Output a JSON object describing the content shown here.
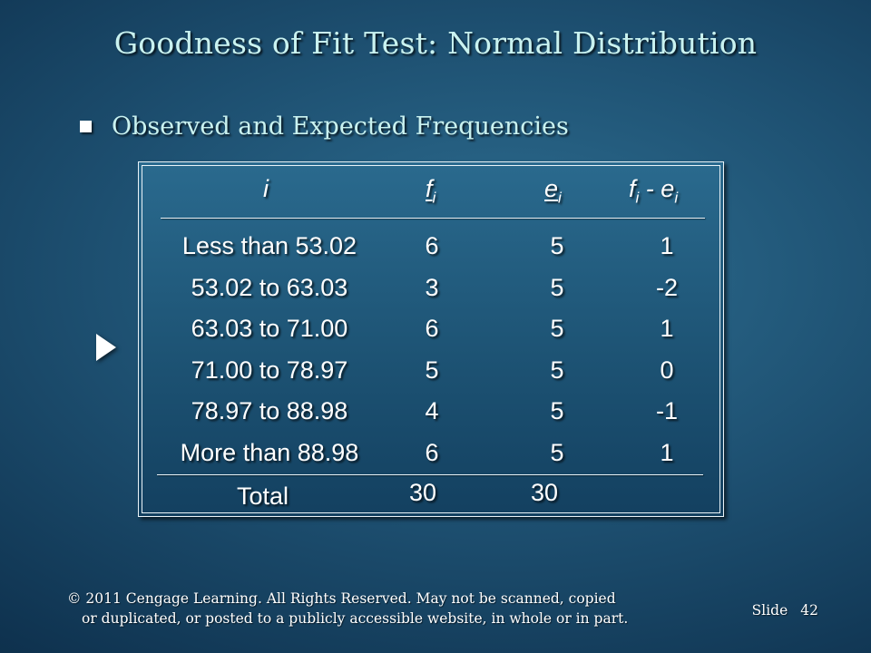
{
  "slide": {
    "title": "Goodness of Fit Test:  Normal Distribution",
    "bullet": "Observed and Expected Frequencies",
    "slide_label": "Slide",
    "slide_number": "42",
    "copyright_line1": "© 2011  Cengage Learning.  All Rights Reserved.  May not be scanned, copied",
    "copyright_line2": "or duplicated, or posted to a publicly accessible website, in whole or in part."
  },
  "table": {
    "headers": {
      "i": "i",
      "f_base": "f",
      "f_sub": "i",
      "e_base": "e",
      "e_sub": "i",
      "diff_f": "f",
      "diff_f_sub": "i",
      "diff_sep": " - ",
      "diff_e": "e",
      "diff_e_sub": "i"
    },
    "rows": [
      {
        "interval": "Less than 53.02",
        "f": "6",
        "e": "5",
        "diff": "1"
      },
      {
        "interval": "53.02 to 63.03",
        "f": "3",
        "e": "5",
        "diff": "-2"
      },
      {
        "interval": "63.03 to 71.00",
        "f": "6",
        "e": "5",
        "diff": "1"
      },
      {
        "interval": "71.00 to 78.97",
        "f": "5",
        "e": "5",
        "diff": "0"
      },
      {
        "interval": "78.97 to 88.98",
        "f": "4",
        "e": "5",
        "diff": "-1"
      },
      {
        "interval": "More than 88.98",
        "f": "6",
        "e": "5",
        "diff": "1"
      }
    ],
    "total": {
      "label": "Total",
      "f": "30",
      "e": "30"
    }
  }
}
